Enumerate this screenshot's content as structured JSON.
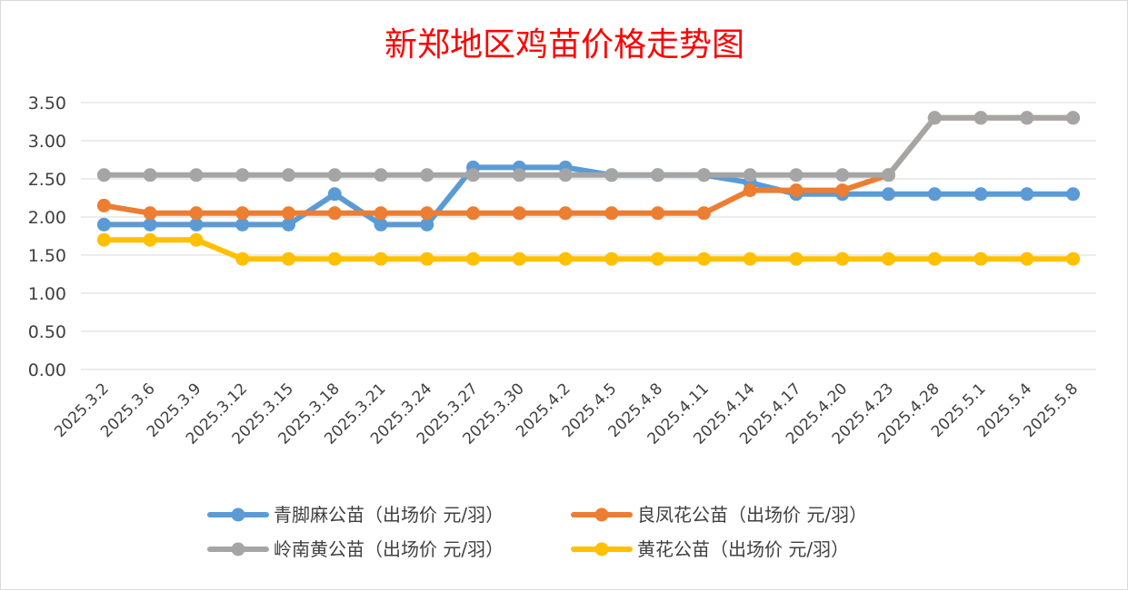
{
  "chart_data": {
    "type": "line",
    "title": "新郑地区鸡苗价格走势图",
    "xlabel": "",
    "ylabel": "",
    "ylim": [
      0,
      3.5
    ],
    "ytick_step": 0.5,
    "ytick_labels": [
      "0.00",
      "0.50",
      "1.00",
      "1.50",
      "2.00",
      "2.50",
      "3.00",
      "3.50"
    ],
    "grid": true,
    "legend_position": "bottom",
    "categories": [
      "2025.3.2",
      "2025.3.6",
      "2025.3.9",
      "2025.3.12",
      "2025.3.15",
      "2025.3.18",
      "2025.3.21",
      "2025.3.24",
      "2025.3.27",
      "2025.3.30",
      "2025.4.2",
      "2025.4.5",
      "2025.4.8",
      "2025.4.11",
      "2025.4.14",
      "2025.4.17",
      "2025.4.20",
      "2025.4.23",
      "2025.4.28",
      "2025.5.1",
      "2025.5.4",
      "2025.5.8"
    ],
    "series": [
      {
        "name": "青脚麻公苗（出场价 元/羽）",
        "color": "#5b9bd5",
        "values": [
          1.9,
          1.9,
          1.9,
          1.9,
          1.9,
          2.3,
          1.9,
          1.9,
          2.65,
          2.65,
          2.65,
          2.55,
          2.55,
          2.55,
          2.45,
          2.3,
          2.3,
          2.3,
          2.3,
          2.3,
          2.3,
          2.3
        ]
      },
      {
        "name": "良凤花公苗（出场价 元/羽）",
        "color": "#ed7d31",
        "values": [
          2.15,
          2.05,
          2.05,
          2.05,
          2.05,
          2.05,
          2.05,
          2.05,
          2.05,
          2.05,
          2.05,
          2.05,
          2.05,
          2.05,
          2.35,
          2.35,
          2.35,
          2.55,
          3.3,
          3.3,
          3.3,
          3.3
        ]
      },
      {
        "name": "岭南黄公苗（出场价 元/羽）",
        "color": "#a5a5a5",
        "values": [
          2.55,
          2.55,
          2.55,
          2.55,
          2.55,
          2.55,
          2.55,
          2.55,
          2.55,
          2.55,
          2.55,
          2.55,
          2.55,
          2.55,
          2.55,
          2.55,
          2.55,
          2.55,
          3.3,
          3.3,
          3.3,
          3.3
        ]
      },
      {
        "name": "黄花公苗（出场价 元/羽）",
        "color": "#ffc000",
        "values": [
          1.7,
          1.7,
          1.7,
          1.45,
          1.45,
          1.45,
          1.45,
          1.45,
          1.45,
          1.45,
          1.45,
          1.45,
          1.45,
          1.45,
          1.45,
          1.45,
          1.45,
          1.45,
          1.45,
          1.45,
          1.45,
          1.45
        ]
      }
    ]
  }
}
